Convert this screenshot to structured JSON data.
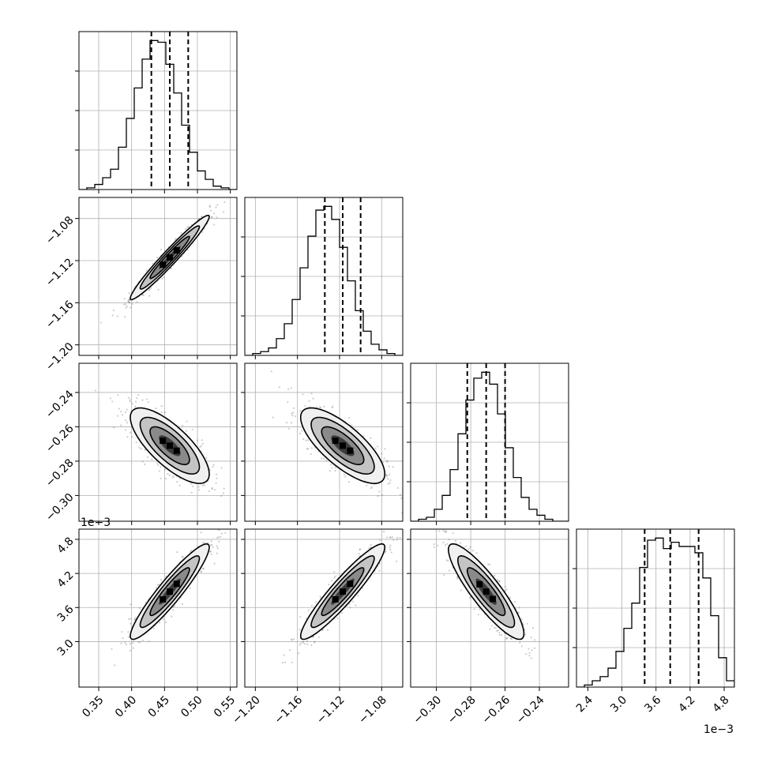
{
  "chart_data": {
    "type": "corner",
    "offset_label": "1e−3",
    "grid": true,
    "params": [
      {
        "range": [
          0.32,
          0.56
        ],
        "ticks": [
          0.35,
          0.4,
          0.45,
          0.5,
          0.55
        ],
        "tick_labels": [
          "0.35",
          "0.40",
          "0.45",
          "0.50",
          "0.55"
        ],
        "mean": 0.458,
        "sd": 0.03,
        "quantiles": [
          0.43,
          0.458,
          0.486
        ],
        "hist": [
          0,
          1,
          3,
          7,
          12,
          25,
          42,
          60,
          77,
          88,
          87,
          74,
          57,
          38,
          22,
          11,
          6,
          2,
          1,
          0
        ]
      },
      {
        "range": [
          -1.21,
          -1.06
        ],
        "ticks": [
          -1.2,
          -1.16,
          -1.12,
          -1.08
        ],
        "tick_labels": [
          "−1.20",
          "−1.16",
          "−1.12",
          "−1.08"
        ],
        "mean": -1.117,
        "sd": 0.02,
        "quantiles": [
          -1.134,
          -1.117,
          -1.1
        ],
        "hist": [
          0,
          1,
          2,
          4,
          9,
          17,
          30,
          47,
          64,
          78,
          80,
          73,
          58,
          40,
          24,
          13,
          6,
          3,
          1,
          0
        ]
      },
      {
        "range": [
          -0.315,
          -0.223
        ],
        "ticks": [
          -0.3,
          -0.28,
          -0.26,
          -0.24
        ],
        "tick_labels": [
          "−0.30",
          "−0.28",
          "−0.26",
          "−0.24"
        ],
        "mean": -0.271,
        "sd": 0.011,
        "quantiles": [
          -0.282,
          -0.271,
          -0.26
        ],
        "hist": [
          0,
          1,
          2,
          6,
          13,
          26,
          44,
          61,
          72,
          75,
          69,
          54,
          37,
          22,
          12,
          6,
          3,
          1,
          0,
          0
        ]
      },
      {
        "range": [
          2.2,
          4.98
        ],
        "ticks": [
          2.4,
          3.0,
          3.6,
          4.2,
          4.8
        ],
        "tick_labels": [
          "2.4",
          "3.0",
          "3.6",
          "4.2",
          "4.8"
        ],
        "y_ticks": [
          3.0,
          3.6,
          4.2,
          4.8
        ],
        "y_tick_labels": [
          "3.0",
          "3.6",
          "4.2",
          "4.8"
        ],
        "mean": 3.88,
        "sd": 0.42,
        "quantiles": [
          3.4,
          3.85,
          4.35
        ],
        "hist": [
          0,
          1,
          3,
          5,
          9,
          17,
          28,
          40,
          57,
          70,
          71,
          66,
          69,
          67,
          67,
          64,
          52,
          34,
          14,
          3
        ]
      }
    ],
    "correlations": [
      [
        1,
        0.97,
        -0.75,
        0.93
      ],
      [
        0.97,
        1,
        -0.75,
        0.93
      ],
      [
        -0.75,
        -0.75,
        1,
        -0.88
      ],
      [
        0.93,
        0.93,
        -0.88,
        1
      ]
    ]
  }
}
